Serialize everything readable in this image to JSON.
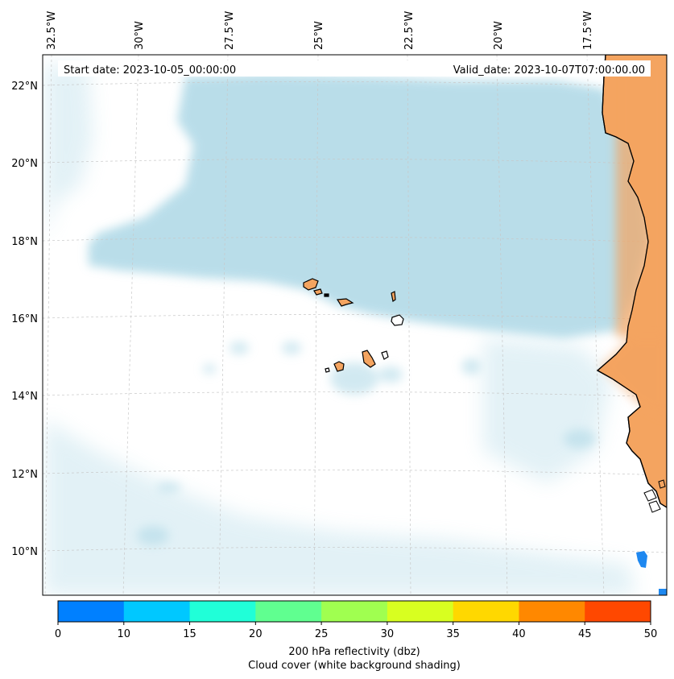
{
  "map": {
    "lon_labels": [
      "32.5°W",
      "30°W",
      "27.5°W",
      "25°W",
      "22.5°W",
      "20°W",
      "17.5°W"
    ],
    "lat_labels": [
      "22°N",
      "20°N",
      "18°N",
      "16°N",
      "14°N",
      "12°N",
      "10°N"
    ],
    "start_date": "Start date: 2023-10-05_00:00:00",
    "valid_date": "Valid_date: 2023-10-07T07:00:00.00",
    "cloud_color": "#add8e6",
    "land_color": "#f4a460",
    "coast_color": "#000000"
  },
  "colorbar": {
    "ticks": [
      "0",
      "10",
      "15",
      "20",
      "25",
      "30",
      "35",
      "40",
      "45",
      "50"
    ],
    "colors": [
      "#0080ff",
      "#00c8ff",
      "#20ffd8",
      "#60ff90",
      "#a0ff50",
      "#d8ff20",
      "#ffd800",
      "#ff8800",
      "#ff4800"
    ],
    "label_line1": "200 hPa reflectivity (dbz)",
    "label_line2": "Cloud cover (white background shading)"
  }
}
